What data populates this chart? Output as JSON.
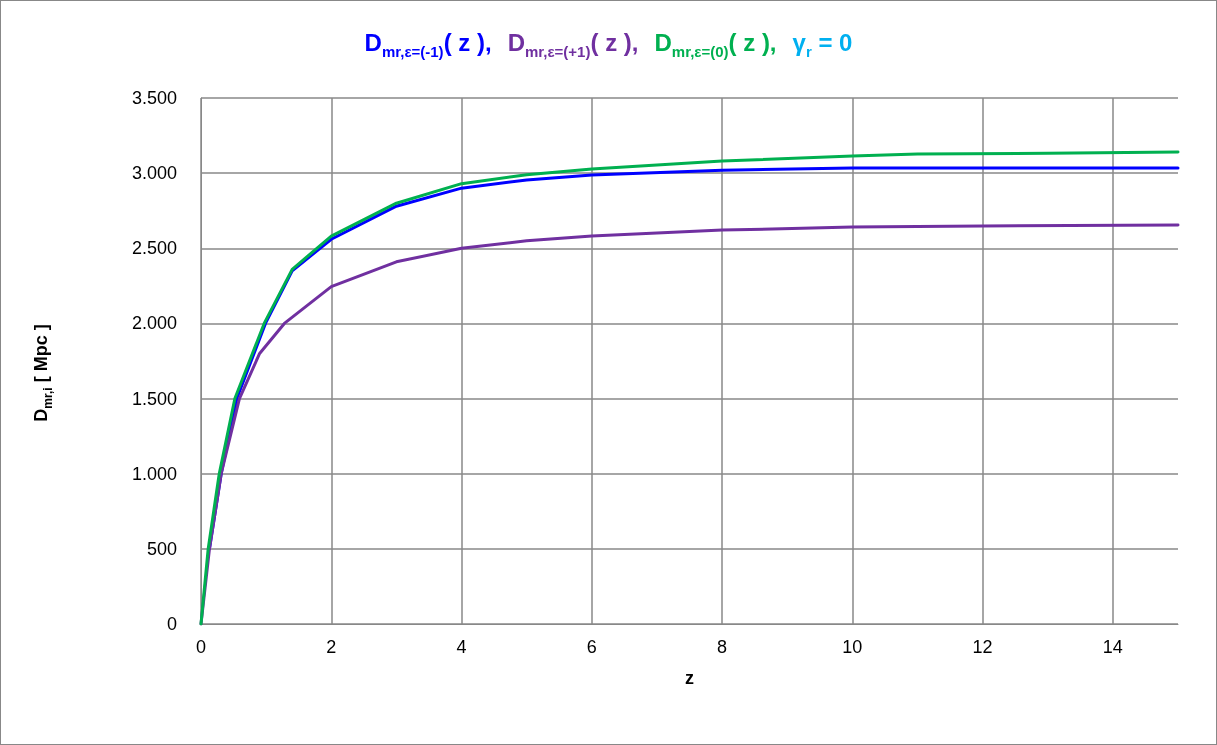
{
  "chart_data": {
    "type": "line",
    "title": "γ$_{r}$ = 0",
    "xlabel": "z",
    "ylabel": "D$_{mr,i}$  [ Mpc ]",
    "legend": "top",
    "grid": true,
    "marker": "none",
    "line_style": "solid",
    "xlim": [
      0,
      15
    ],
    "xticks": [
      0,
      2,
      4,
      6,
      8,
      10,
      12,
      14
    ],
    "ylim": [
      0,
      3500
    ],
    "yticks": [
      0,
      500,
      {
        "value": 1000,
        "label": "1.000"
      },
      {
        "value": 1500,
        "label": "1.500"
      },
      {
        "value": 2000,
        "label": "2.000"
      },
      {
        "value": 2500,
        "label": "2.500"
      },
      {
        "value": 3000,
        "label": "3.000"
      },
      {
        "value": 3500,
        "label": "3.500"
      }
    ],
    "series": [
      {
        "name": "D$_{mr,ε=(-1)}$( z ),",
        "color": "#0000ff",
        "x": [
          0.13,
          0.31,
          0.55,
          0.99,
          1.4,
          2,
          3,
          4,
          5,
          6,
          8,
          10,
          12,
          15
        ],
        "values": [
          500,
          1000,
          1500,
          2000,
          2350,
          2560,
          2780,
          2900,
          2955,
          2987,
          3020,
          3034,
          3035,
          3035
        ]
      },
      {
        "name": "D$_{mr,ε=(+1)}$( z ),",
        "color": "#7030a0",
        "x": [
          0,
          0.13,
          0.31,
          0.59,
          0.9,
          1.28,
          2,
          3,
          4,
          5,
          6,
          8,
          10,
          12,
          15
        ],
        "values": [
          0,
          500,
          1000,
          1500,
          1800,
          2000,
          2245,
          2410,
          2500,
          2550,
          2582,
          2621,
          2641,
          2648,
          2655
        ]
      },
      {
        "name": "D$_{mr,ε=(0)}$( z ),",
        "color": "#00b050",
        "x": [
          0,
          0.11,
          0.28,
          0.52,
          0.97,
          1.4,
          2,
          3,
          4,
          5,
          6,
          8,
          10,
          11,
          13,
          15
        ],
        "values": [
          0,
          500,
          1000,
          1500,
          2000,
          2360,
          2581,
          2800,
          2930,
          2990,
          3027,
          3080,
          3114,
          3127,
          3132,
          3140
        ]
      }
    ]
  }
}
